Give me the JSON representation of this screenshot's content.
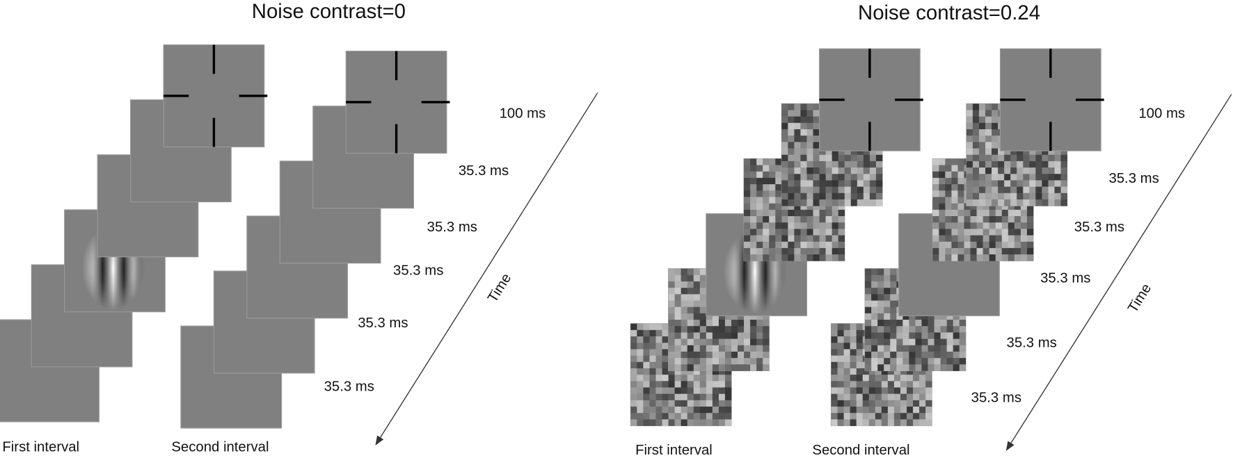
{
  "panels": [
    {
      "title": "Noise contrast=0",
      "durations": [
        "100 ms",
        "35.3 ms",
        "35.3 ms",
        "35.3 ms",
        "35.3 ms",
        "35.3 ms"
      ],
      "first_label": "First  interval",
      "second_label": "Second interval",
      "time_label": "Time"
    },
    {
      "title": "Noise contrast=0.24",
      "durations": [
        "100 ms",
        "35.3 ms",
        "35.3 ms",
        "35.3 ms",
        "35.3 ms",
        "35.3 ms"
      ],
      "first_label": "First  interval",
      "second_label": "Second interval",
      "time_label": "Time"
    }
  ]
}
